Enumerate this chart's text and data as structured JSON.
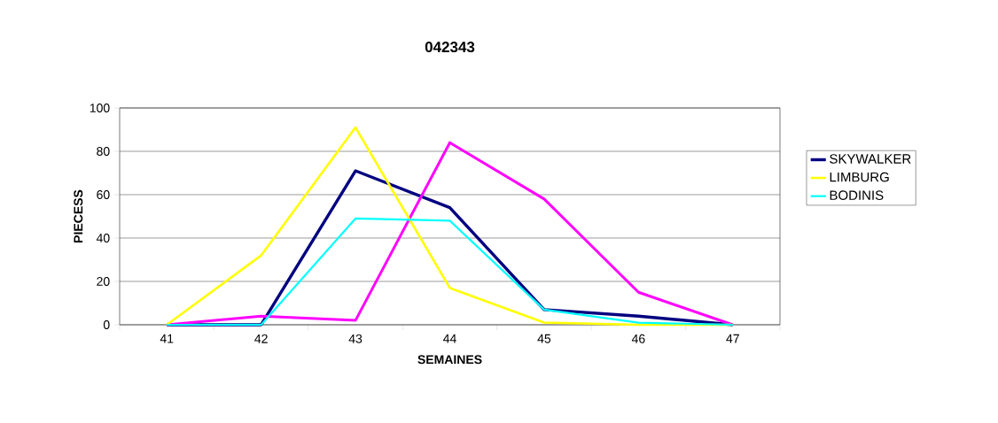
{
  "chart_data": {
    "type": "line",
    "title": "042343",
    "xlabel": "SEMAINES",
    "ylabel": "PIECESS",
    "categories": [
      "41",
      "42",
      "43",
      "44",
      "45",
      "46",
      "47"
    ],
    "series": [
      {
        "name": "SKYWALKER",
        "color": "#000080",
        "values": [
          0,
          0,
          71,
          54,
          7,
          4,
          0
        ]
      },
      {
        "color": "#ff00ff",
        "values": [
          0,
          4,
          2,
          84,
          58,
          15,
          0
        ]
      },
      {
        "name": "LIMBURG",
        "color": "#ffff00",
        "values": [
          0,
          32,
          91,
          17,
          1,
          0,
          0
        ]
      },
      {
        "name": "BODINIS",
        "color": "#00ffff",
        "values": [
          0,
          0,
          49,
          48,
          7,
          1,
          0
        ]
      }
    ],
    "ylim": [
      0,
      100
    ],
    "yticks": [
      0,
      20,
      40,
      60,
      80,
      100
    ],
    "grid": "y",
    "legend": "right",
    "marker": "none",
    "line_style": "solid"
  }
}
